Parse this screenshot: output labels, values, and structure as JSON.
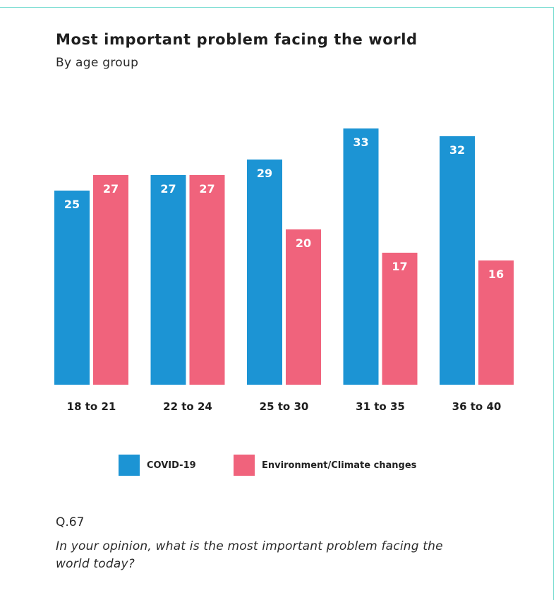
{
  "chart_data": {
    "type": "bar",
    "title": "Most important problem facing the world",
    "subtitle": "By age group",
    "categories": [
      "18 to 21",
      "22 to 24",
      "25 to 30",
      "31 to 35",
      "36 to 40"
    ],
    "series": [
      {
        "name": "COVID-19",
        "values": [
          25,
          27,
          29,
          33,
          32
        ],
        "color": "#1c94d4"
      },
      {
        "name": "Environment/Climate changes",
        "values": [
          27,
          27,
          20,
          17,
          16
        ],
        "color": "#f0637c"
      }
    ],
    "ylim": [
      0,
      33
    ],
    "grid": false,
    "legend": "bottom",
    "data_labels": true
  },
  "footer": {
    "question_number": "Q.67",
    "question_text": "In your opinion, what is the most important problem facing the world today?"
  }
}
